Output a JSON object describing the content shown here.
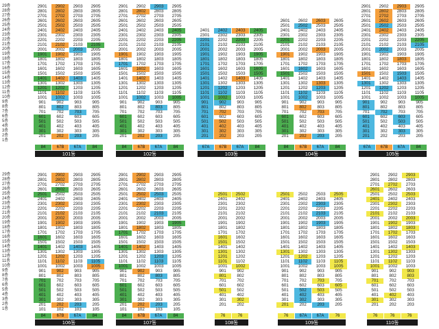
{
  "floor_labels": [
    "29층",
    "28층",
    "27층",
    "26층",
    "25층",
    "24층",
    "23층",
    "22층",
    "21층",
    "20층",
    "19층",
    "18층",
    "17층",
    "16층",
    "15층",
    "14층",
    "13층",
    "12층",
    "11층",
    "10층",
    "9층",
    "8층",
    "7층",
    "6층",
    "5층",
    "4층",
    "3층",
    "2층",
    "1층"
  ],
  "colors": {
    "orange": "#f5a03d",
    "blue": "#4db8e0",
    "green": "#4caf50",
    "yellow": "#f2e84a",
    "label_bar": "#1a1a1a"
  },
  "buildings": [
    {
      "name": "101동",
      "types": [
        "84",
        "67B",
        "67A",
        "84"
      ],
      "type_colors": [
        "green",
        "orange",
        "blue",
        "green"
      ],
      "floors": {
        "top": 29,
        "bottom": 2
      },
      "lines": [
        "01",
        "02",
        "03",
        "05"
      ],
      "marks": {
        "2902": "o",
        "2802": "o",
        "2702": "o",
        "2602": "o",
        "2502": "o",
        "2402": "o",
        "2102": "o",
        "2105": "g",
        "2003": "b",
        "1901": "g",
        "1902": "o",
        "1402": "o",
        "1403": "b",
        "1401": "g",
        "1202": "g",
        "1201": "g",
        "1102": "o",
        "1002": "b",
        "802": "b",
        "703": "b",
        "601": "g",
        "501": "g",
        "401": "g",
        "301": "g",
        "202": "o",
        "203": "b",
        "1805": "w"
      }
    },
    {
      "name": "102동",
      "types": [
        "84",
        "67B",
        "67A",
        "84"
      ],
      "type_colors": [
        "green",
        "orange",
        "blue",
        "green"
      ],
      "floors": {
        "top": 29,
        "bottom": 2
      },
      "lines": [
        "01",
        "02",
        "03",
        "05"
      ],
      "marks": {
        "2903": "b",
        "2802": "o",
        "2405": "g",
        "2205": "g",
        "1901": "o",
        "1701": "b",
        "1602": "o",
        "1005": "g",
        "1002": "b",
        "803": "b",
        "1402": "o",
        "601": "g",
        "501": "g",
        "401": "g",
        "301": "g",
        "202": "o",
        "203": "b",
        "1205": "w"
      }
    },
    {
      "name": "103동",
      "types": [
        "67A",
        "67B",
        "67A",
        "84"
      ],
      "type_colors": [
        "blue",
        "orange",
        "blue",
        "green"
      ],
      "floors": {
        "top": 24,
        "bottom": 2
      },
      "lines": [
        "01",
        "02",
        "03",
        "05"
      ],
      "marks": {
        "2402": "b",
        "2403": "o",
        "2405": "g",
        "2201": "b",
        "2101": "b",
        "2001": "b",
        "1901": "b",
        "1801": "b",
        "1701": "b",
        "1601": "b",
        "1501": "b",
        "1401": "b",
        "1301": "b",
        "1201": "b",
        "1101": "b",
        "1001": "b",
        "901": "b",
        "801": "b",
        "701": "b",
        "601": "b",
        "501": "b",
        "401": "b",
        "301": "b",
        "201": "b",
        "2203": "g",
        "1905": "g",
        "1605": "g",
        "1505": "g",
        "1403": "o",
        "1202": "b",
        "1102": "b",
        "1002": "g",
        "902": "b",
        "702": "o",
        "502": "o",
        "402": "o",
        "302": "o",
        "202": "o",
        "103": "o"
      }
    },
    {
      "name": "104동",
      "types": [
        "84",
        "67B",
        "67A",
        "84"
      ],
      "type_colors": [
        "green",
        "orange",
        "blue",
        "green"
      ],
      "floors": {
        "top": 26,
        "bottom": 2
      },
      "lines": [
        "01",
        "02",
        "03",
        "05"
      ],
      "marks": {
        "2903": "o",
        "2603": "o",
        "2502": "b",
        "2201": "g",
        "2003": "o",
        "1901": "o",
        "1602": "b",
        "1501": "g",
        "1303": "o",
        "1203": "b",
        "1102": "b",
        "1002": "b",
        "802": "o",
        "703": "o",
        "601": "g",
        "501": "g",
        "401": "g",
        "301": "g",
        "202": "o",
        "203": "b",
        "1905": "w"
      }
    },
    {
      "name": "105동",
      "types": [
        "67A",
        "67B",
        "67A",
        "84"
      ],
      "type_colors": [
        "blue",
        "orange",
        "blue",
        "green"
      ],
      "floors": {
        "top": 29,
        "bottom": 2
      },
      "lines": [
        "01",
        "02",
        "03",
        "05"
      ],
      "marks": {
        "2903": "o",
        "2802": "o",
        "2702": "o",
        "2602": "o",
        "2502": "b",
        "2402": "o",
        "2205": "g",
        "2105": "b",
        "2002": "b",
        "1803": "o",
        "1501": "o",
        "1503": "b",
        "1403": "b",
        "1301": "b",
        "1202": "b",
        "1005": "g",
        "901": "b",
        "801": "b",
        "702": "b",
        "601": "b",
        "501": "b",
        "401": "b",
        "301": "b",
        "201": "b",
        "603": "b",
        "503": "b",
        "303": "b"
      }
    },
    {
      "name": "106동",
      "types": [
        "84",
        "67B",
        "67A",
        "84"
      ],
      "type_colors": [
        "green",
        "orange",
        "blue",
        "green"
      ],
      "floors": {
        "top": 29,
        "bottom": 1
      },
      "lines": [
        "01",
        "02",
        "03",
        "05"
      ],
      "marks": {
        "2902": "o",
        "2802": "o",
        "2602": "g",
        "2501": "g",
        "2302": "o",
        "2102": "o",
        "2002": "o",
        "1902": "o",
        "1601": "g",
        "1401": "g",
        "1403": "b",
        "1202": "o",
        "1102": "o",
        "1105": "b",
        "1005": "o",
        "902": "o",
        "701": "g",
        "601": "g",
        "501": "g",
        "401": "g",
        "301": "g",
        "202": "o",
        "203": "b",
        "1805": "w"
      }
    },
    {
      "name": "107동",
      "types": [
        "84",
        "67B",
        "67A",
        "84"
      ],
      "type_colors": [
        "green",
        "orange",
        "blue",
        "green"
      ],
      "floors": {
        "top": 29,
        "bottom": 1
      },
      "lines": [
        "01",
        "02",
        "03",
        "05"
      ],
      "marks": {
        "2902": "o",
        "2802": "o",
        "2502": "o",
        "2503": "b",
        "2302": "o",
        "2103": "b",
        "1905": "g",
        "1802": "o",
        "1701": "g",
        "1401": "g",
        "1402": "o",
        "1203": "b",
        "1103": "b",
        "1001": "g",
        "902": "o",
        "803": "b",
        "601": "g",
        "501": "g",
        "401": "g",
        "301": "g",
        "202": "o",
        "203": "b"
      }
    },
    {
      "name": "108동",
      "types": [
        "76",
        "76"
      ],
      "type_colors": [
        "yellow",
        "yellow"
      ],
      "floors": {
        "top": 25,
        "bottom": 2
      },
      "lines": [
        "01",
        "02"
      ],
      "marks": {
        "2501": "y",
        "2502": "y",
        "1601": "y",
        "1501": "y",
        "1301": "y",
        "1201": "y",
        "1101": "y",
        "1002": "y",
        "801": "y",
        "501": "y",
        "302": "y",
        "2002": "w"
      }
    },
    {
      "name": "109동",
      "types": [
        "76",
        "67A",
        "67A",
        "76"
      ],
      "type_colors": [
        "yellow",
        "blue",
        "blue",
        "yellow"
      ],
      "floors": {
        "top": 25,
        "bottom": 2
      },
      "lines": [
        "01",
        "02",
        "03",
        "05"
      ],
      "marks": {
        "2501": "y",
        "2505": "y",
        "2303": "b",
        "2103": "b",
        "1903": "b",
        "1401": "w",
        "1301": "y",
        "1202": "y",
        "1105": "y",
        "1102": "b",
        "1005": "y",
        "703": "y",
        "605": "y",
        "502": "b",
        "503": "y",
        "402": "b",
        "302": "b",
        "201": "y",
        "203": "b"
      }
    },
    {
      "name": "110동",
      "types": [
        "76",
        "76",
        "76"
      ],
      "type_colors": [
        "yellow",
        "yellow",
        "yellow"
      ],
      "floors": {
        "top": 29,
        "bottom": 2
      },
      "lines": [
        "01",
        "02",
        "03"
      ],
      "marks": {
        "2903": "y",
        "2702": "y",
        "2601": "y",
        "2503": "y",
        "2401": "y",
        "2302": "y",
        "2101": "y",
        "2003": "y",
        "1902": "y",
        "1803": "y",
        "1702": "y",
        "1403": "y",
        "1302": "y",
        "1102": "y",
        "1001": "y",
        "903": "y",
        "803": "y",
        "701": "y",
        "402": "y",
        "301": "y"
      }
    }
  ]
}
